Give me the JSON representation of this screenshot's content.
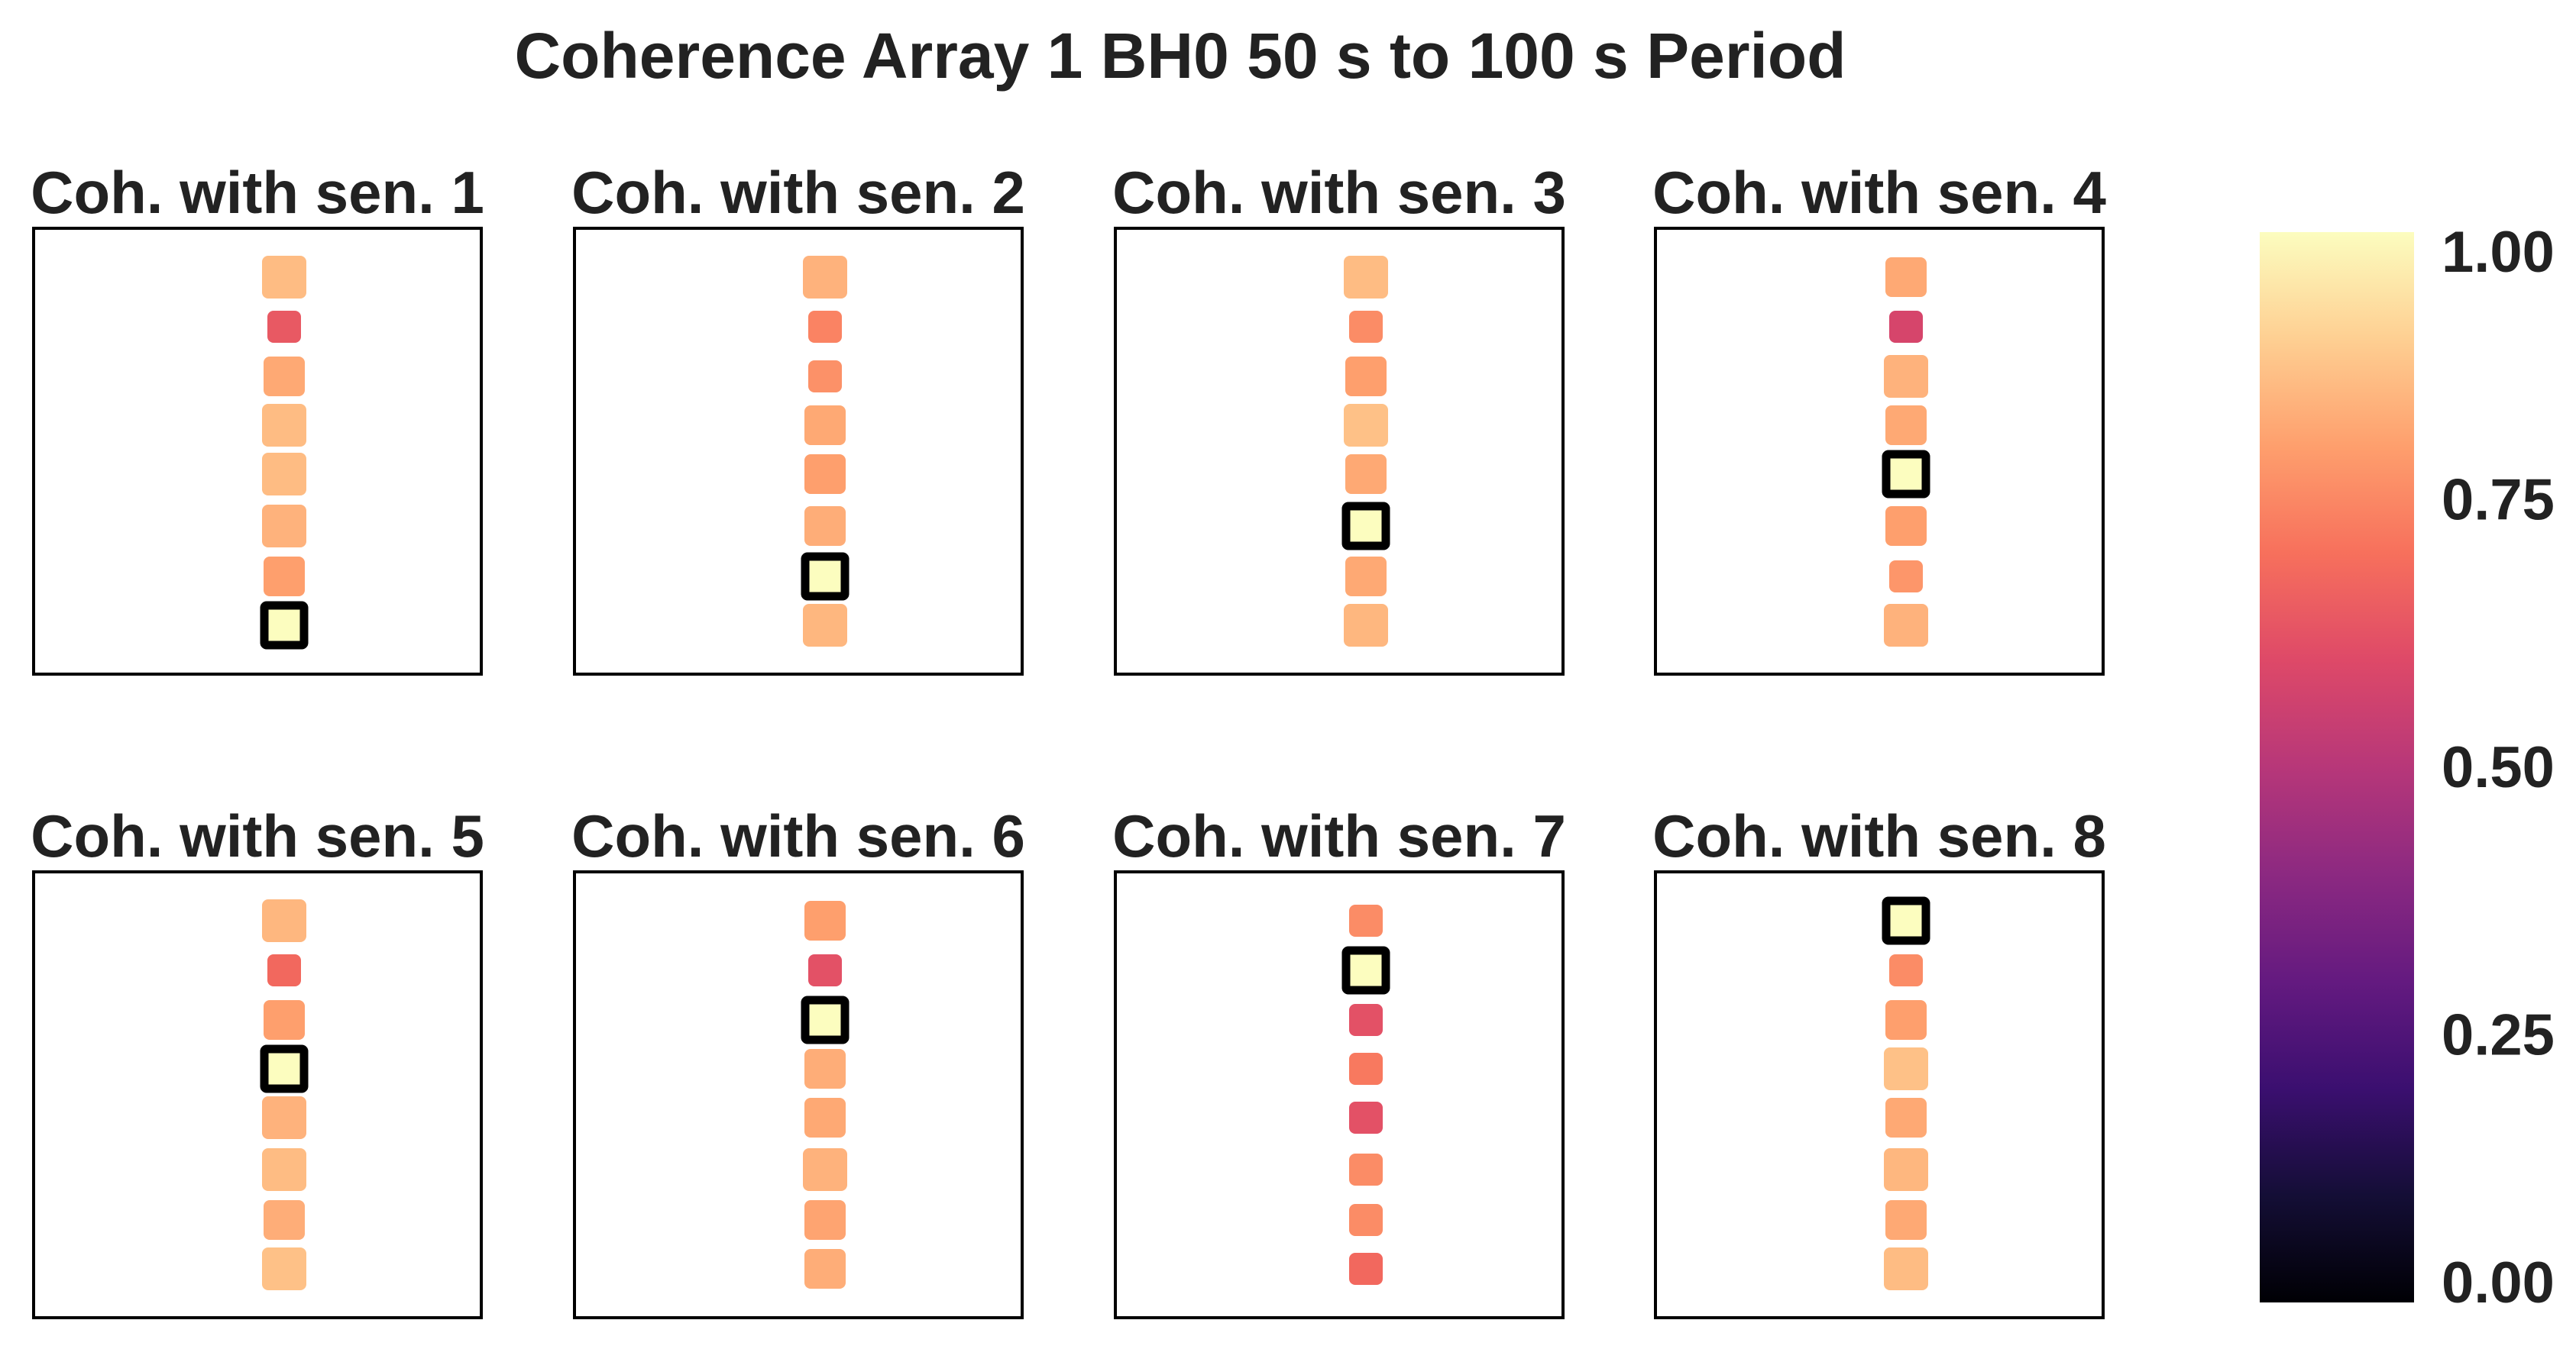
{
  "chart_data": {
    "type": "scatter",
    "title": "Coherence Array 1 BH0 50 s to 100 s Period",
    "colormap": "magma",
    "colorbar": {
      "vmin": 0.0,
      "vmax": 1.0,
      "ticks": [
        "0.00",
        "0.25",
        "0.50",
        "0.75",
        "1.00"
      ],
      "location": "right"
    },
    "subplots": [
      {
        "title": "Coh. with sen. 1",
        "reference": 1,
        "sensors": [
          {
            "sensor": 1,
            "coherence": 1.0,
            "reference": true
          },
          {
            "sensor": 2,
            "coherence": 0.8
          },
          {
            "sensor": 3,
            "coherence": 0.84
          },
          {
            "sensor": 4,
            "coherence": 0.86
          },
          {
            "sensor": 5,
            "coherence": 0.86
          },
          {
            "sensor": 6,
            "coherence": 0.82
          },
          {
            "sensor": 7,
            "coherence": 0.64
          },
          {
            "sensor": 8,
            "coherence": 0.86
          }
        ]
      },
      {
        "title": "Coh. with sen. 2",
        "reference": 2,
        "sensors": [
          {
            "sensor": 1,
            "coherence": 0.85
          },
          {
            "sensor": 2,
            "coherence": 1.0,
            "reference": true
          },
          {
            "sensor": 3,
            "coherence": 0.83
          },
          {
            "sensor": 4,
            "coherence": 0.8
          },
          {
            "sensor": 5,
            "coherence": 0.82
          },
          {
            "sensor": 6,
            "coherence": 0.77
          },
          {
            "sensor": 7,
            "coherence": 0.74
          },
          {
            "sensor": 8,
            "coherence": 0.84
          }
        ]
      },
      {
        "title": "Coh. with sen. 3",
        "reference": 3,
        "sensors": [
          {
            "sensor": 1,
            "coherence": 0.85
          },
          {
            "sensor": 2,
            "coherence": 0.82
          },
          {
            "sensor": 3,
            "coherence": 1.0,
            "reference": true
          },
          {
            "sensor": 4,
            "coherence": 0.82
          },
          {
            "sensor": 5,
            "coherence": 0.87
          },
          {
            "sensor": 6,
            "coherence": 0.8
          },
          {
            "sensor": 7,
            "coherence": 0.76
          },
          {
            "sensor": 8,
            "coherence": 0.86
          }
        ]
      },
      {
        "title": "Coh. with sen. 4",
        "reference": 4,
        "sensors": [
          {
            "sensor": 1,
            "coherence": 0.84
          },
          {
            "sensor": 2,
            "coherence": 0.78
          },
          {
            "sensor": 3,
            "coherence": 0.8
          },
          {
            "sensor": 4,
            "coherence": 1.0,
            "reference": true
          },
          {
            "sensor": 5,
            "coherence": 0.82
          },
          {
            "sensor": 6,
            "coherence": 0.84
          },
          {
            "sensor": 7,
            "coherence": 0.58
          },
          {
            "sensor": 8,
            "coherence": 0.82
          }
        ]
      },
      {
        "title": "Coh. with sen. 5",
        "reference": 5,
        "sensors": [
          {
            "sensor": 1,
            "coherence": 0.87
          },
          {
            "sensor": 2,
            "coherence": 0.83
          },
          {
            "sensor": 3,
            "coherence": 0.86
          },
          {
            "sensor": 4,
            "coherence": 0.84
          },
          {
            "sensor": 5,
            "coherence": 1.0,
            "reference": true
          },
          {
            "sensor": 6,
            "coherence": 0.8
          },
          {
            "sensor": 7,
            "coherence": 0.68
          },
          {
            "sensor": 8,
            "coherence": 0.85
          }
        ]
      },
      {
        "title": "Coh. with sen. 6",
        "reference": 6,
        "sensors": [
          {
            "sensor": 1,
            "coherence": 0.83
          },
          {
            "sensor": 2,
            "coherence": 0.81
          },
          {
            "sensor": 3,
            "coherence": 0.84
          },
          {
            "sensor": 4,
            "coherence": 0.82
          },
          {
            "sensor": 5,
            "coherence": 0.83
          },
          {
            "sensor": 6,
            "coherence": 1.0,
            "reference": true
          },
          {
            "sensor": 7,
            "coherence": 0.62
          },
          {
            "sensor": 8,
            "coherence": 0.8
          }
        ]
      },
      {
        "title": "Coh. with sen. 7",
        "reference": 7,
        "sensors": [
          {
            "sensor": 1,
            "coherence": 0.68
          },
          {
            "sensor": 2,
            "coherence": 0.76
          },
          {
            "sensor": 3,
            "coherence": 0.76
          },
          {
            "sensor": 4,
            "coherence": 0.62
          },
          {
            "sensor": 5,
            "coherence": 0.72
          },
          {
            "sensor": 6,
            "coherence": 0.62
          },
          {
            "sensor": 7,
            "coherence": 1.0,
            "reference": true
          },
          {
            "sensor": 8,
            "coherence": 0.76
          }
        ]
      },
      {
        "title": "Coh. with sen. 8",
        "reference": 8,
        "sensors": [
          {
            "sensor": 1,
            "coherence": 0.86
          },
          {
            "sensor": 2,
            "coherence": 0.82
          },
          {
            "sensor": 3,
            "coherence": 0.85
          },
          {
            "sensor": 4,
            "coherence": 0.82
          },
          {
            "sensor": 5,
            "coherence": 0.87
          },
          {
            "sensor": 6,
            "coherence": 0.8
          },
          {
            "sensor": 7,
            "coherence": 0.76
          },
          {
            "sensor": 8,
            "coherence": 1.0,
            "reference": true
          }
        ]
      }
    ]
  }
}
